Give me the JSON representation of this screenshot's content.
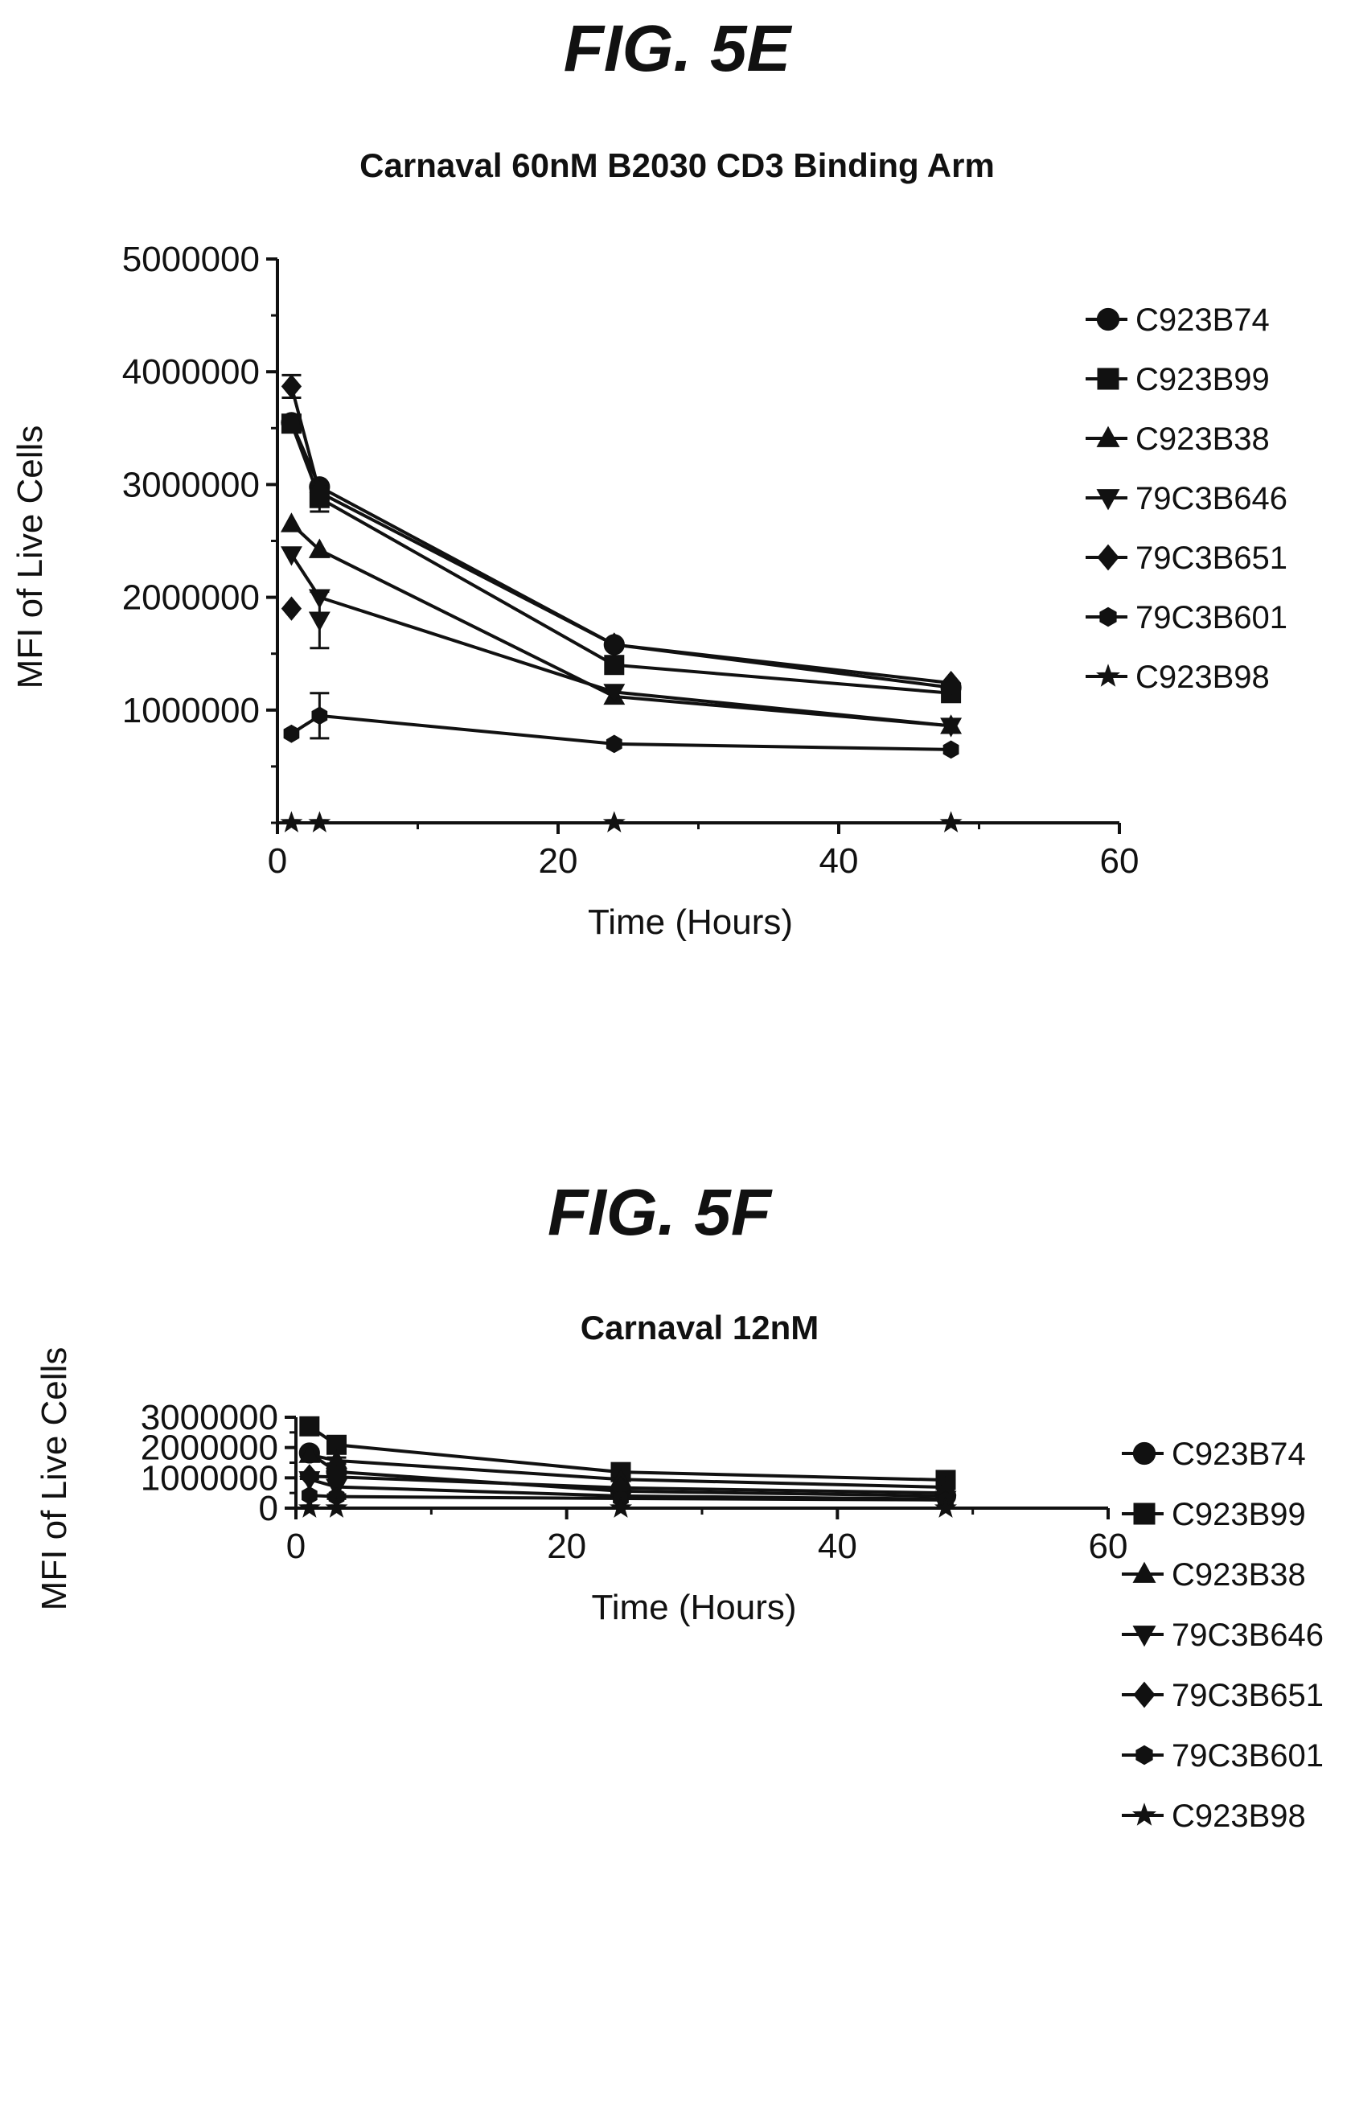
{
  "figures": [
    {
      "label": "FIG. 5E"
    },
    {
      "label": "FIG. 5F"
    }
  ],
  "chart_data": [
    {
      "type": "line",
      "title": "Carnaval 60nM B2030 CD3 Binding Arm",
      "xlabel": "Time (Hours)",
      "ylabel": "MFI of Live Cells",
      "xlim": [
        0,
        60
      ],
      "ylim": [
        0,
        5000000
      ],
      "xticks": [
        "0",
        "20",
        "40",
        "60"
      ],
      "yticks": [
        "1000000",
        "2000000",
        "3000000",
        "4000000",
        "5000000"
      ],
      "x": [
        1,
        3,
        24,
        48
      ],
      "legend": "right",
      "series": [
        {
          "name": "C923B74",
          "marker": "circle",
          "values": [
            3550000,
            2980000,
            1580000,
            1200000
          ],
          "err": [
            0,
            0,
            0,
            0
          ]
        },
        {
          "name": "C923B99",
          "marker": "square",
          "values": [
            3540000,
            2880000,
            1400000,
            1150000
          ],
          "err": [
            0,
            120000,
            0,
            0
          ]
        },
        {
          "name": "C923B38",
          "marker": "triangle",
          "values": [
            2650000,
            2420000,
            1120000,
            860000
          ],
          "err": [
            0,
            0,
            0,
            0
          ]
        },
        {
          "name": "79C3B646",
          "marker": "tri-down",
          "values": [
            2380000,
            2000000,
            1160000,
            860000
          ],
          "err": [
            0,
            0,
            0,
            0
          ]
        },
        {
          "name": "79C3B651",
          "marker": "diamond",
          "values": [
            3870000,
            2930000,
            1580000,
            1240000
          ],
          "err": [
            100000,
            0,
            0,
            0
          ]
        },
        {
          "name": "79C3B601",
          "marker": "hexagon",
          "values": [
            790000,
            950000,
            700000,
            650000
          ],
          "err": [
            0,
            200000,
            0,
            0
          ]
        },
        {
          "name": "C923B98",
          "marker": "star",
          "values": [
            0,
            0,
            0,
            0
          ],
          "err": [
            0,
            0,
            0,
            0
          ]
        }
      ],
      "extra_points": [
        {
          "series": "79C3B651",
          "x": 1,
          "y": 1900000
        },
        {
          "series": "79C3B646",
          "x": 3,
          "y": 1800000,
          "err": 250000
        }
      ]
    },
    {
      "type": "line",
      "title": "Carnaval 12nM",
      "xlabel": "Time (Hours)",
      "ylabel": "MFI of Live Cells",
      "xlim": [
        0,
        60
      ],
      "ylim": [
        0,
        3000000
      ],
      "xticks": [
        "0",
        "20",
        "40",
        "60"
      ],
      "yticks": [
        "0",
        "1000000",
        "2000000",
        "3000000"
      ],
      "x": [
        1,
        3,
        24,
        48
      ],
      "legend": "right",
      "series": [
        {
          "name": "C923B74",
          "marker": "circle",
          "values": [
            1820000,
            1200000,
            560000,
            400000
          ],
          "err": [
            120000,
            0,
            60000,
            0
          ]
        },
        {
          "name": "C923B99",
          "marker": "square",
          "values": [
            2700000,
            2090000,
            1190000,
            930000
          ],
          "err": [
            0,
            0,
            0,
            0
          ]
        },
        {
          "name": "C923B38",
          "marker": "triangle",
          "values": [
            1760000,
            1570000,
            950000,
            690000
          ],
          "err": [
            0,
            100000,
            0,
            0
          ]
        },
        {
          "name": "79C3B646",
          "marker": "tri-down",
          "values": [
            950000,
            700000,
            400000,
            300000
          ],
          "err": [
            0,
            0,
            0,
            0
          ]
        },
        {
          "name": "79C3B651",
          "marker": "diamond",
          "values": [
            1050000,
            1030000,
            670000,
            500000
          ],
          "err": [
            80000,
            0,
            0,
            0
          ]
        },
        {
          "name": "79C3B601",
          "marker": "hexagon",
          "values": [
            420000,
            380000,
            320000,
            270000
          ],
          "err": [
            0,
            70000,
            0,
            0
          ]
        },
        {
          "name": "C923B98",
          "marker": "star",
          "values": [
            0,
            0,
            0,
            0
          ],
          "err": [
            0,
            0,
            0,
            0
          ]
        }
      ]
    }
  ]
}
